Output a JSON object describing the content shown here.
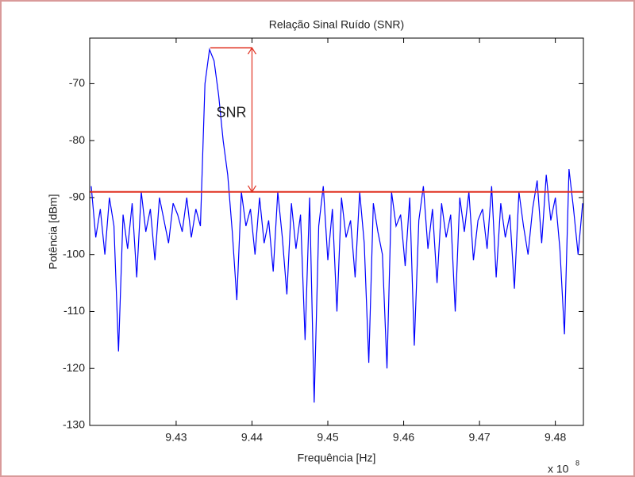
{
  "chart_data": {
    "type": "line",
    "title": "Relação Sinal Ruído (SNR)",
    "x_label": "Frequência [Hz]",
    "y_label": "Potência [dBm]",
    "x_multiplier": "x 10",
    "x_multiplier_exp": "8",
    "annotation": "SNR",
    "noise_level": -89,
    "peak_level": -63.7,
    "peak_x": 9.4345,
    "arrow_x": 9.44,
    "annotation_color": "#e03020",
    "x": [
      9.4188,
      9.4194,
      9.42,
      9.4206,
      9.4212,
      9.4218,
      9.4224,
      9.423,
      9.4236,
      9.4242,
      9.4248,
      9.4254,
      9.426,
      9.4266,
      9.4272,
      9.4278,
      9.4284,
      9.429,
      9.4296,
      9.4302,
      9.4308,
      9.4314,
      9.432,
      9.4326,
      9.4332,
      9.4338,
      9.4344,
      9.435,
      9.4356,
      9.4362,
      9.4368,
      9.4374,
      9.438,
      9.4386,
      9.4392,
      9.4398,
      9.4404,
      9.441,
      9.4416,
      9.4422,
      9.4428,
      9.4434,
      9.444,
      9.4446,
      9.4452,
      9.4458,
      9.4464,
      9.447,
      9.4476,
      9.4482,
      9.4488,
      9.4494,
      9.45,
      9.4506,
      9.4512,
      9.4518,
      9.4524,
      9.453,
      9.4536,
      9.4542,
      9.4548,
      9.4554,
      9.456,
      9.4566,
      9.4572,
      9.4578,
      9.4584,
      9.459,
      9.4596,
      9.4602,
      9.4608,
      9.4614,
      9.462,
      9.4626,
      9.4632,
      9.4638,
      9.4644,
      9.465,
      9.4656,
      9.4662,
      9.4668,
      9.4674,
      9.468,
      9.4686,
      9.4692,
      9.4698,
      9.4704,
      9.471,
      9.4716,
      9.4722,
      9.4728,
      9.4734,
      9.474,
      9.4746,
      9.4752,
      9.4758,
      9.4764,
      9.477,
      9.4776,
      9.4782,
      9.4788,
      9.4794,
      9.48,
      9.4806,
      9.4812,
      9.4818,
      9.4824,
      9.483,
      9.4836
    ],
    "series": [
      {
        "color": "#0000ff",
        "values": [
          -88,
          -97,
          -92,
          -100,
          -90,
          -95,
          -117,
          -93,
          -99,
          -91,
          -104,
          -89,
          -96,
          -92,
          -101,
          -90,
          -94,
          -98,
          -91,
          -93,
          -96,
          -90,
          -97,
          -92,
          -95,
          -70,
          -64,
          -66,
          -72,
          -80,
          -86,
          -96,
          -108,
          -89,
          -95,
          -92,
          -100,
          -90,
          -98,
          -94,
          -103,
          -89,
          -97,
          -107,
          -91,
          -99,
          -93,
          -115,
          -90,
          -126,
          -95,
          -88,
          -101,
          -92,
          -110,
          -90,
          -97,
          -94,
          -104,
          -89,
          -98,
          -119,
          -91,
          -96,
          -100,
          -120,
          -89,
          -95,
          -93,
          -102,
          -90,
          -116,
          -94,
          -88,
          -99,
          -92,
          -105,
          -91,
          -97,
          -93,
          -110,
          -90,
          -96,
          -89,
          -101,
          -94,
          -92,
          -99,
          -88,
          -104,
          -91,
          -97,
          -93,
          -106,
          -89,
          -95,
          -100,
          -92,
          -87,
          -98,
          -86,
          -94,
          -90,
          -99,
          -114,
          -85,
          -92,
          -100,
          -91
        ]
      }
    ],
    "xlim": [
      9.4186,
      9.4837
    ],
    "ylim": [
      -130,
      -62
    ],
    "xticks": [
      9.43,
      9.44,
      9.45,
      9.46,
      9.47,
      9.48
    ],
    "yticks": [
      -130,
      -120,
      -110,
      -100,
      -90,
      -80,
      -70
    ]
  }
}
